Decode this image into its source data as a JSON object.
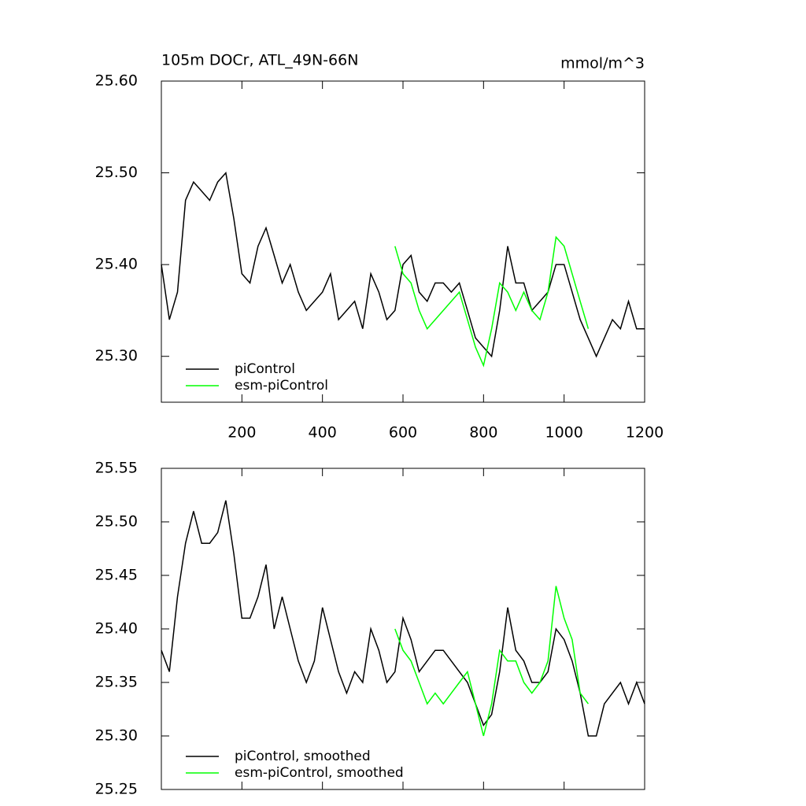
{
  "chart_data": [
    {
      "type": "line",
      "title": "105m DOCr, ATL_49N-66N",
      "units": "mmol/m^3",
      "xlim": [
        0,
        1200
      ],
      "xticks": [
        200,
        400,
        600,
        800,
        1000,
        1200
      ],
      "ylim": [
        25.25,
        25.6
      ],
      "yticks": [
        {
          "value": 25.3,
          "label": "25.30"
        },
        {
          "value": 25.4,
          "label": "25.40"
        },
        {
          "value": 25.5,
          "label": "25.50"
        },
        {
          "value": 25.6,
          "label": "25.60"
        }
      ],
      "legend": "lower left",
      "series": [
        {
          "name": "piControl",
          "color": "#000000",
          "x": [
            0,
            20,
            40,
            60,
            80,
            100,
            120,
            140,
            160,
            180,
            200,
            220,
            240,
            260,
            280,
            300,
            320,
            340,
            360,
            380,
            400,
            420,
            440,
            460,
            480,
            500,
            520,
            540,
            560,
            580,
            600,
            620,
            640,
            660,
            680,
            700,
            720,
            740,
            760,
            780,
            800,
            820,
            840,
            860,
            880,
            900,
            920,
            940,
            960,
            980,
            1000,
            1020,
            1040,
            1060,
            1080,
            1100,
            1120,
            1140,
            1160,
            1180,
            1200
          ],
          "values": [
            25.4,
            25.34,
            25.37,
            25.47,
            25.49,
            25.48,
            25.47,
            25.49,
            25.5,
            25.45,
            25.39,
            25.38,
            25.42,
            25.44,
            25.41,
            25.38,
            25.4,
            25.37,
            25.35,
            25.36,
            25.37,
            25.39,
            25.34,
            25.35,
            25.36,
            25.33,
            25.39,
            25.37,
            25.34,
            25.35,
            25.4,
            25.41,
            25.37,
            25.36,
            25.38,
            25.38,
            25.37,
            25.38,
            25.35,
            25.32,
            25.31,
            25.3,
            25.35,
            25.42,
            25.38,
            25.38,
            25.35,
            25.36,
            25.37,
            25.4,
            25.4,
            25.37,
            25.34,
            25.32,
            25.3,
            25.32,
            25.34,
            25.33,
            25.36,
            25.33,
            25.33
          ]
        },
        {
          "name": "esm-piControl",
          "color": "#00ff00",
          "x": [
            580,
            600,
            620,
            640,
            660,
            680,
            700,
            720,
            740,
            760,
            780,
            800,
            820,
            840,
            860,
            880,
            900,
            920,
            940,
            960,
            980,
            1000,
            1020,
            1040,
            1060
          ],
          "values": [
            25.42,
            25.39,
            25.38,
            25.35,
            25.33,
            25.34,
            25.35,
            25.36,
            25.37,
            25.34,
            25.31,
            25.29,
            25.33,
            25.38,
            25.37,
            25.35,
            25.37,
            25.35,
            25.34,
            25.37,
            25.43,
            25.42,
            25.39,
            25.36,
            25.33
          ]
        }
      ]
    },
    {
      "type": "line",
      "xlim": [
        0,
        1200
      ],
      "xticks": [
        200,
        400,
        600,
        800,
        1000,
        1200
      ],
      "ylim": [
        25.25,
        25.55
      ],
      "yticks": [
        {
          "value": 25.25,
          "label": "25.25"
        },
        {
          "value": 25.3,
          "label": "25.30"
        },
        {
          "value": 25.35,
          "label": "25.35"
        },
        {
          "value": 25.4,
          "label": "25.40"
        },
        {
          "value": 25.45,
          "label": "25.45"
        },
        {
          "value": 25.5,
          "label": "25.50"
        },
        {
          "value": 25.55,
          "label": "25.55"
        }
      ],
      "legend": "lower left",
      "series": [
        {
          "name": "piControl, smoothed",
          "color": "#000000",
          "x": [
            0,
            20,
            40,
            60,
            80,
            100,
            120,
            140,
            160,
            180,
            200,
            220,
            240,
            260,
            280,
            300,
            320,
            340,
            360,
            380,
            400,
            420,
            440,
            460,
            480,
            500,
            520,
            540,
            560,
            580,
            600,
            620,
            640,
            660,
            680,
            700,
            720,
            740,
            760,
            780,
            800,
            820,
            840,
            860,
            880,
            900,
            920,
            940,
            960,
            980,
            1000,
            1020,
            1040,
            1060,
            1080,
            1100,
            1120,
            1140,
            1160,
            1180,
            1200
          ],
          "values": [
            25.38,
            25.36,
            25.43,
            25.48,
            25.51,
            25.48,
            25.48,
            25.49,
            25.52,
            25.47,
            25.41,
            25.41,
            25.43,
            25.46,
            25.4,
            25.43,
            25.4,
            25.37,
            25.35,
            25.37,
            25.42,
            25.39,
            25.36,
            25.34,
            25.36,
            25.35,
            25.4,
            25.38,
            25.35,
            25.36,
            25.41,
            25.39,
            25.36,
            25.37,
            25.38,
            25.38,
            25.37,
            25.36,
            25.35,
            25.33,
            25.31,
            25.32,
            25.36,
            25.42,
            25.38,
            25.37,
            25.35,
            25.35,
            25.36,
            25.4,
            25.39,
            25.37,
            25.34,
            25.3,
            25.3,
            25.33,
            25.34,
            25.35,
            25.33,
            25.35,
            25.33
          ]
        },
        {
          "name": "esm-piControl, smoothed",
          "color": "#00ff00",
          "x": [
            580,
            600,
            620,
            640,
            660,
            680,
            700,
            720,
            740,
            760,
            780,
            800,
            820,
            840,
            860,
            880,
            900,
            920,
            940,
            960,
            980,
            1000,
            1020,
            1040,
            1060
          ],
          "values": [
            25.4,
            25.38,
            25.37,
            25.35,
            25.33,
            25.34,
            25.33,
            25.34,
            25.35,
            25.36,
            25.33,
            25.3,
            25.33,
            25.38,
            25.37,
            25.37,
            25.35,
            25.34,
            25.35,
            25.37,
            25.44,
            25.41,
            25.39,
            25.34,
            25.33
          ]
        }
      ]
    }
  ]
}
